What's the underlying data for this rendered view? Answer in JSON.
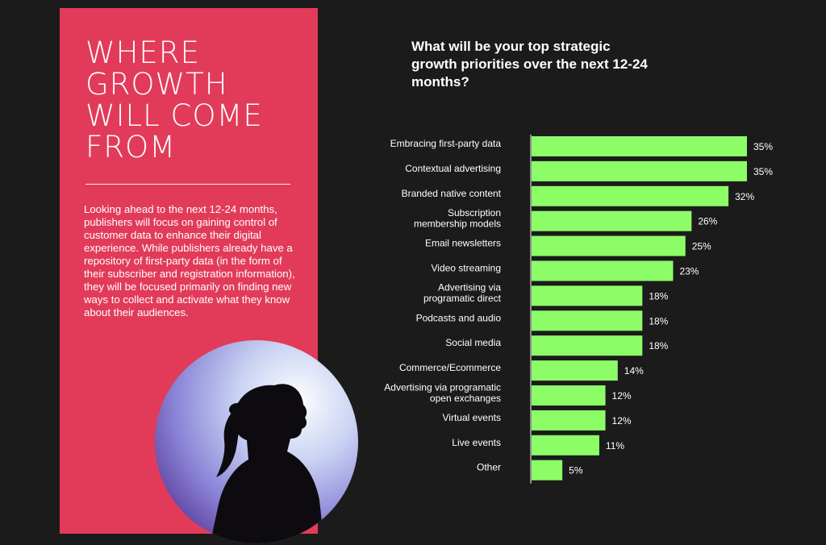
{
  "headline": {
    "lines": [
      "WHERE",
      "GROWTH",
      "WILL COME",
      "FROM"
    ]
  },
  "body_text": "Looking ahead to the next 12-24 months, publishers will focus on gaining control of customer data to enhance their digital experience. While publishers already have a repository of first-party data (in the form of their subscriber and registration information), they will be focused primarily on finding new ways to collect and activate what they know about their audiences.",
  "colors": {
    "panel": "#e23b5a",
    "bar": "#8cfd67",
    "background": "#1b1b1b"
  },
  "chart_data": {
    "type": "bar",
    "orientation": "horizontal",
    "title": "What will be your top strategic growth priorities over the next 12-24 months?",
    "categories": [
      [
        "Embracing first-party data"
      ],
      [
        "Contextual advertising"
      ],
      [
        "Branded native content"
      ],
      [
        "Subscription",
        "membership models"
      ],
      [
        "Email newsletters"
      ],
      [
        "Video streaming"
      ],
      [
        "Advertising via",
        "programatic direct"
      ],
      [
        "Podcasts and audio"
      ],
      [
        "Social media"
      ],
      [
        "Commerce/Ecommerce"
      ],
      [
        "Advertising via programatic",
        "open exchanges"
      ],
      [
        "Virtual events"
      ],
      [
        "Live events"
      ],
      [
        "Other"
      ]
    ],
    "values": [
      35,
      35,
      32,
      26,
      25,
      23,
      18,
      18,
      18,
      14,
      12,
      12,
      11,
      5
    ],
    "value_labels": [
      "35%",
      "35%",
      "32%",
      "26%",
      "25%",
      "23%",
      "18%",
      "18%",
      "18%",
      "14%",
      "12%",
      "12%",
      "11%",
      "5%"
    ],
    "xlim": [
      0,
      35
    ]
  }
}
